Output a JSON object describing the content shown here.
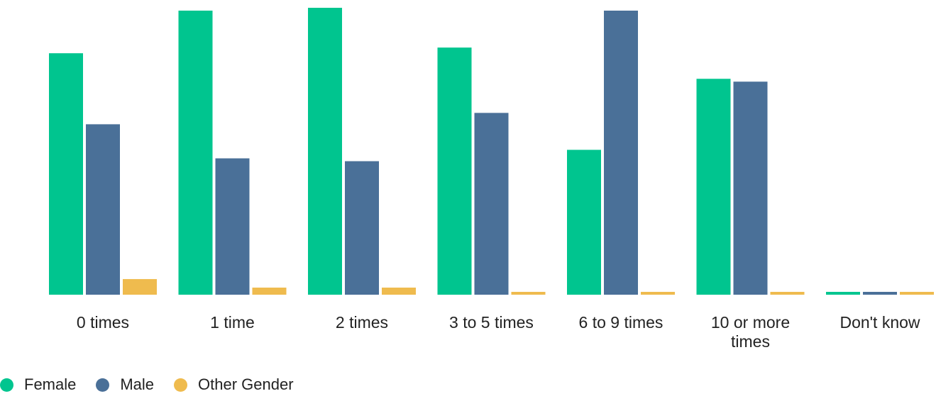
{
  "chart_data": {
    "type": "bar",
    "categories": [
      [
        "0 times"
      ],
      [
        "1 time"
      ],
      [
        "2 times"
      ],
      [
        "3 to 5 times"
      ],
      [
        "6 to 9 times"
      ],
      [
        "10 or more",
        "times"
      ],
      [
        "Don't know"
      ]
    ],
    "series": [
      {
        "name": "Female",
        "color": "#00c58f",
        "values": [
          85,
          100,
          101,
          87,
          51,
          76,
          1
        ]
      },
      {
        "name": "Male",
        "color": "#4a7098",
        "values": [
          60,
          48,
          47,
          64,
          100,
          75,
          1
        ]
      },
      {
        "name": "Other Gender",
        "color": "#efbb4e",
        "values": [
          5.5,
          2.5,
          2.5,
          1,
          1,
          1,
          1
        ]
      }
    ],
    "ylim": [
      0,
      101
    ],
    "grid": false,
    "legend_position": "bottom-left",
    "title": "",
    "xlabel": "",
    "ylabel": ""
  }
}
